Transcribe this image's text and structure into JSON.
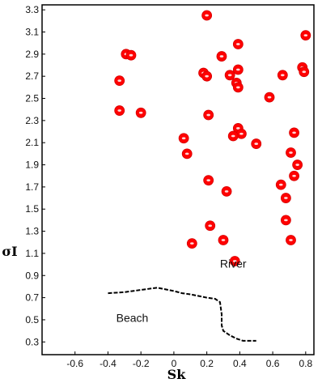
{
  "chart_data": {
    "type": "scatter",
    "title": "",
    "xlabel": "Sk",
    "ylabel": "σI",
    "xlim": [
      -0.75,
      0.85
    ],
    "ylim": [
      0.2,
      3.35
    ],
    "grid": false,
    "x_ticks": [
      {
        "value": -0.6,
        "label": "-0.6"
      },
      {
        "value": -0.4,
        "label": "-0.4"
      },
      {
        "value": -0.2,
        "label": "-0.2"
      },
      {
        "value": 0.0,
        "label": "0"
      },
      {
        "value": 0.2,
        "label": "0.2"
      },
      {
        "value": 0.4,
        "label": "0.4"
      },
      {
        "value": 0.6,
        "label": "0.6"
      },
      {
        "value": 0.8,
        "label": "0.8"
      }
    ],
    "y_ticks": [
      {
        "value": 0.3,
        "label": "0.3"
      },
      {
        "value": 0.5,
        "label": "0.5"
      },
      {
        "value": 0.7,
        "label": "0.7"
      },
      {
        "value": 0.9,
        "label": "0.9"
      },
      {
        "value": 1.1,
        "label": "1.1"
      },
      {
        "value": 1.3,
        "label": "1.3"
      },
      {
        "value": 1.5,
        "label": "1.5"
      },
      {
        "value": 1.7,
        "label": "1.7"
      },
      {
        "value": 1.9,
        "label": "1.9"
      },
      {
        "value": 2.1,
        "label": "2.1"
      },
      {
        "value": 2.3,
        "label": "2.3"
      },
      {
        "value": 2.5,
        "label": "2.5"
      },
      {
        "value": 2.7,
        "label": "2.7"
      },
      {
        "value": 2.9,
        "label": "2.9"
      },
      {
        "value": 3.1,
        "label": "3.1"
      },
      {
        "value": 3.3,
        "label": "3.3"
      }
    ],
    "points": [
      {
        "x": 0.2,
        "y": 3.25
      },
      {
        "x": 0.8,
        "y": 3.07
      },
      {
        "x": 0.39,
        "y": 2.99
      },
      {
        "x": -0.29,
        "y": 2.9
      },
      {
        "x": -0.26,
        "y": 2.89
      },
      {
        "x": 0.29,
        "y": 2.88
      },
      {
        "x": 0.78,
        "y": 2.78
      },
      {
        "x": 0.39,
        "y": 2.76
      },
      {
        "x": 0.18,
        "y": 2.73
      },
      {
        "x": 0.79,
        "y": 2.74
      },
      {
        "x": 0.34,
        "y": 2.71
      },
      {
        "x": 0.2,
        "y": 2.7
      },
      {
        "x": 0.66,
        "y": 2.71
      },
      {
        "x": -0.33,
        "y": 2.66
      },
      {
        "x": 0.38,
        "y": 2.64
      },
      {
        "x": 0.39,
        "y": 2.6
      },
      {
        "x": 0.58,
        "y": 2.51
      },
      {
        "x": -0.33,
        "y": 2.39
      },
      {
        "x": -0.2,
        "y": 2.37
      },
      {
        "x": 0.21,
        "y": 2.35
      },
      {
        "x": 0.39,
        "y": 2.23
      },
      {
        "x": 0.73,
        "y": 2.19
      },
      {
        "x": 0.41,
        "y": 2.18
      },
      {
        "x": 0.36,
        "y": 2.16
      },
      {
        "x": 0.06,
        "y": 2.14
      },
      {
        "x": 0.5,
        "y": 2.09
      },
      {
        "x": 0.08,
        "y": 2.0
      },
      {
        "x": 0.71,
        "y": 2.01
      },
      {
        "x": 0.75,
        "y": 1.9
      },
      {
        "x": 0.73,
        "y": 1.8
      },
      {
        "x": 0.21,
        "y": 1.76
      },
      {
        "x": 0.65,
        "y": 1.72
      },
      {
        "x": 0.32,
        "y": 1.66
      },
      {
        "x": 0.68,
        "y": 1.6
      },
      {
        "x": 0.68,
        "y": 1.4
      },
      {
        "x": 0.22,
        "y": 1.35
      },
      {
        "x": 0.3,
        "y": 1.22
      },
      {
        "x": 0.71,
        "y": 1.22
      },
      {
        "x": 0.11,
        "y": 1.19
      },
      {
        "x": 0.37,
        "y": 1.03
      }
    ],
    "marker_color": "#ff0000",
    "boundary_line": {
      "style": "dashed",
      "color": "#000000",
      "points": [
        {
          "x": -0.4,
          "y": 0.74
        },
        {
          "x": -0.3,
          "y": 0.75
        },
        {
          "x": -0.2,
          "y": 0.77
        },
        {
          "x": -0.1,
          "y": 0.79
        },
        {
          "x": 0.0,
          "y": 0.76
        },
        {
          "x": 0.05,
          "y": 0.74
        },
        {
          "x": 0.1,
          "y": 0.73
        },
        {
          "x": 0.2,
          "y": 0.7
        },
        {
          "x": 0.25,
          "y": 0.69
        },
        {
          "x": 0.28,
          "y": 0.66
        },
        {
          "x": 0.29,
          "y": 0.55
        },
        {
          "x": 0.29,
          "y": 0.45
        },
        {
          "x": 0.3,
          "y": 0.4
        },
        {
          "x": 0.34,
          "y": 0.36
        },
        {
          "x": 0.38,
          "y": 0.33
        },
        {
          "x": 0.42,
          "y": 0.31
        },
        {
          "x": 0.5,
          "y": 0.31
        }
      ]
    },
    "annotations": [
      {
        "text": "River",
        "x": 0.28,
        "y": 0.97
      },
      {
        "text": "Beach",
        "x": -0.35,
        "y": 0.48
      }
    ]
  }
}
